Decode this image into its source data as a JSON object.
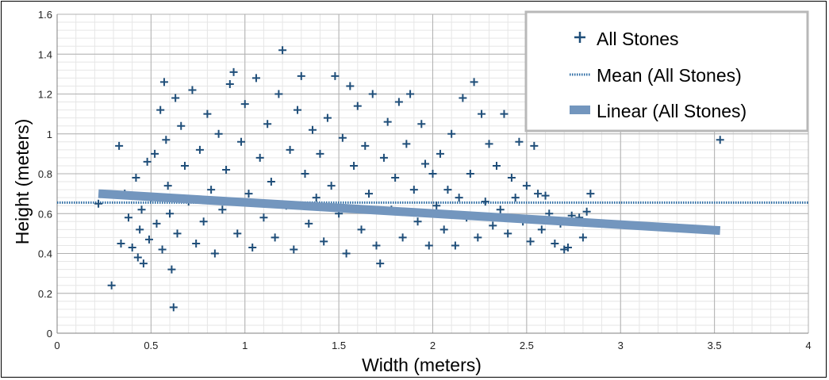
{
  "chart_data": {
    "type": "scatter",
    "title": "",
    "xlabel": "Width (meters)",
    "ylabel": "Height (meters)",
    "xlim": [
      0,
      4
    ],
    "ylim": [
      0,
      1.6
    ],
    "x_ticks": [
      "0",
      "0.5",
      "1",
      "1.5",
      "2",
      "2.5",
      "3",
      "3.5",
      "4"
    ],
    "y_ticks": [
      "0",
      "0.2",
      "0.4",
      "0.6",
      "0.8",
      "1",
      "1.2",
      "1.4",
      "1.6"
    ],
    "grid": "major and minor",
    "legend_position": "top-right",
    "colors": {
      "points": "#1f4e79",
      "mean": "#2e6da4",
      "linear": "#7396be",
      "grid": "#b0b0b0",
      "minor_grid": "#e6e6e6"
    },
    "series": [
      {
        "name": "All Stones",
        "marker": "plus",
        "points": [
          [
            0.22,
            0.65
          ],
          [
            0.29,
            0.24
          ],
          [
            0.33,
            0.94
          ],
          [
            0.34,
            0.45
          ],
          [
            0.36,
            0.7
          ],
          [
            0.38,
            0.58
          ],
          [
            0.4,
            0.43
          ],
          [
            0.42,
            0.78
          ],
          [
            0.43,
            0.38
          ],
          [
            0.44,
            0.52
          ],
          [
            0.45,
            0.62
          ],
          [
            0.46,
            0.35
          ],
          [
            0.48,
            0.86
          ],
          [
            0.49,
            0.47
          ],
          [
            0.5,
            0.68
          ],
          [
            0.52,
            0.9
          ],
          [
            0.53,
            0.55
          ],
          [
            0.55,
            1.12
          ],
          [
            0.56,
            0.42
          ],
          [
            0.57,
            1.26
          ],
          [
            0.58,
            0.97
          ],
          [
            0.59,
            0.74
          ],
          [
            0.6,
            0.6
          ],
          [
            0.61,
            0.32
          ],
          [
            0.62,
            0.13
          ],
          [
            0.63,
            1.18
          ],
          [
            0.64,
            0.5
          ],
          [
            0.66,
            1.04
          ],
          [
            0.68,
            0.84
          ],
          [
            0.7,
            0.66
          ],
          [
            0.72,
            1.22
          ],
          [
            0.74,
            0.45
          ],
          [
            0.76,
            0.92
          ],
          [
            0.78,
            0.56
          ],
          [
            0.8,
            1.1
          ],
          [
            0.82,
            0.72
          ],
          [
            0.84,
            0.4
          ],
          [
            0.86,
            1.0
          ],
          [
            0.88,
            0.62
          ],
          [
            0.9,
            0.82
          ],
          [
            0.92,
            1.25
          ],
          [
            0.94,
            1.31
          ],
          [
            0.96,
            0.5
          ],
          [
            0.98,
            0.96
          ],
          [
            1.0,
            1.15
          ],
          [
            1.02,
            0.7
          ],
          [
            1.04,
            0.43
          ],
          [
            1.06,
            1.28
          ],
          [
            1.08,
            0.88
          ],
          [
            1.1,
            0.58
          ],
          [
            1.12,
            1.05
          ],
          [
            1.14,
            0.76
          ],
          [
            1.16,
            0.48
          ],
          [
            1.18,
            1.2
          ],
          [
            1.2,
            1.42
          ],
          [
            1.22,
            0.64
          ],
          [
            1.24,
            0.92
          ],
          [
            1.26,
            0.42
          ],
          [
            1.28,
            1.12
          ],
          [
            1.3,
            1.29
          ],
          [
            1.32,
            0.8
          ],
          [
            1.34,
            0.55
          ],
          [
            1.36,
            1.02
          ],
          [
            1.38,
            0.68
          ],
          [
            1.4,
            0.9
          ],
          [
            1.42,
            0.46
          ],
          [
            1.44,
            1.08
          ],
          [
            1.46,
            0.74
          ],
          [
            1.48,
            1.29
          ],
          [
            1.5,
            0.6
          ],
          [
            1.52,
            0.98
          ],
          [
            1.54,
            0.4
          ],
          [
            1.56,
            1.24
          ],
          [
            1.58,
            0.84
          ],
          [
            1.6,
            1.14
          ],
          [
            1.62,
            0.52
          ],
          [
            1.64,
            0.94
          ],
          [
            1.66,
            0.7
          ],
          [
            1.68,
            1.2
          ],
          [
            1.7,
            0.44
          ],
          [
            1.72,
            0.35
          ],
          [
            1.74,
            0.88
          ],
          [
            1.76,
            1.06
          ],
          [
            1.78,
            0.62
          ],
          [
            1.8,
            0.78
          ],
          [
            1.82,
            1.16
          ],
          [
            1.84,
            0.48
          ],
          [
            1.86,
            0.95
          ],
          [
            1.88,
            1.2
          ],
          [
            1.9,
            0.72
          ],
          [
            1.92,
            0.56
          ],
          [
            1.94,
            1.05
          ],
          [
            1.96,
            0.85
          ],
          [
            1.98,
            0.44
          ],
          [
            2.0,
            0.8
          ],
          [
            2.02,
            0.64
          ],
          [
            2.04,
            0.9
          ],
          [
            2.06,
            0.52
          ],
          [
            2.08,
            0.72
          ],
          [
            2.1,
            1.0
          ],
          [
            2.12,
            0.44
          ],
          [
            2.14,
            0.68
          ],
          [
            2.16,
            1.18
          ],
          [
            2.18,
            0.58
          ],
          [
            2.2,
            0.8
          ],
          [
            2.22,
            1.26
          ],
          [
            2.24,
            0.48
          ],
          [
            2.26,
            1.1
          ],
          [
            2.28,
            0.66
          ],
          [
            2.3,
            0.95
          ],
          [
            2.32,
            0.54
          ],
          [
            2.34,
            0.84
          ],
          [
            2.36,
            0.62
          ],
          [
            2.38,
            1.1
          ],
          [
            2.4,
            0.5
          ],
          [
            2.42,
            0.78
          ],
          [
            2.44,
            0.68
          ],
          [
            2.46,
            0.96
          ],
          [
            2.48,
            0.56
          ],
          [
            2.5,
            0.74
          ],
          [
            2.52,
            0.46
          ],
          [
            2.54,
            0.94
          ],
          [
            2.56,
            0.7
          ],
          [
            2.58,
            0.52
          ],
          [
            2.6,
            0.69
          ],
          [
            2.62,
            0.6
          ],
          [
            2.65,
            0.45
          ],
          [
            2.68,
            0.55
          ],
          [
            2.7,
            0.42
          ],
          [
            2.72,
            0.43
          ],
          [
            2.74,
            0.59
          ],
          [
            2.78,
            0.58
          ],
          [
            2.8,
            0.48
          ],
          [
            2.82,
            0.61
          ],
          [
            2.84,
            0.7
          ],
          [
            3.53,
            0.97
          ]
        ]
      },
      {
        "name": "Mean (All Stones)",
        "style": "dotted-line",
        "y": 0.655
      },
      {
        "name": "Linear (All Stones)",
        "style": "thick-line",
        "x": [
          0.22,
          3.53
        ],
        "y": [
          0.7,
          0.515
        ]
      }
    ]
  }
}
